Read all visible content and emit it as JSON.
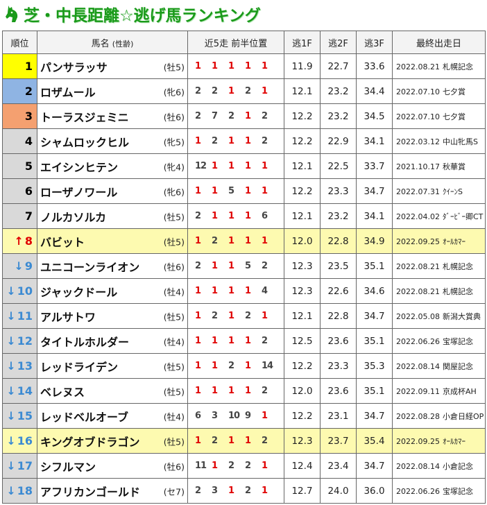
{
  "title": "芝・中長距離☆逃げ馬ランキング",
  "headers": {
    "rank": "順位",
    "name": "馬名",
    "sexage": "(性齢)",
    "positions": "近5走 前半位置",
    "f1": "逃1F",
    "f2": "逃2F",
    "f3": "逃3F",
    "last": "最終出走日"
  },
  "colors": {
    "gold": "#ffff00",
    "silver": "#8fb4e3",
    "bronze": "#f4a070",
    "highlight": "#fdfab0",
    "first_position": "#e00000"
  },
  "rows": [
    {
      "rank": "1",
      "arrow": "",
      "name": "パンサラッサ",
      "sexage": "(牡5)",
      "pos": [
        "1",
        "1",
        "1",
        "1",
        "1"
      ],
      "f1": "11.9",
      "f2": "22.7",
      "f3": "33.6",
      "date": "2022.08.21",
      "race": "札幌記念",
      "hl": false
    },
    {
      "rank": "2",
      "arrow": "",
      "name": "ロザムール",
      "sexage": "(牝6)",
      "pos": [
        "2",
        "2",
        "1",
        "2",
        "1"
      ],
      "f1": "12.1",
      "f2": "23.2",
      "f3": "34.4",
      "date": "2022.07.10",
      "race": "七夕賞",
      "hl": false
    },
    {
      "rank": "3",
      "arrow": "",
      "name": "トーラスジェミニ",
      "sexage": "(牡6)",
      "pos": [
        "2",
        "7",
        "2",
        "1",
        "2"
      ],
      "f1": "12.2",
      "f2": "23.2",
      "f3": "34.5",
      "date": "2022.07.10",
      "race": "七夕賞",
      "hl": false
    },
    {
      "rank": "4",
      "arrow": "",
      "name": "シャムロックヒル",
      "sexage": "(牝5)",
      "pos": [
        "1",
        "2",
        "1",
        "1",
        "2"
      ],
      "f1": "12.2",
      "f2": "22.9",
      "f3": "34.1",
      "date": "2022.03.12",
      "race": "中山牝馬S",
      "hl": false
    },
    {
      "rank": "5",
      "arrow": "",
      "name": "エイシンヒテン",
      "sexage": "(牝4)",
      "pos": [
        "12",
        "1",
        "1",
        "1",
        "1"
      ],
      "f1": "12.1",
      "f2": "22.5",
      "f3": "33.7",
      "date": "2021.10.17",
      "race": "秋華賞",
      "hl": false
    },
    {
      "rank": "6",
      "arrow": "",
      "name": "ローザノワール",
      "sexage": "(牝6)",
      "pos": [
        "1",
        "1",
        "5",
        "1",
        "1"
      ],
      "f1": "12.2",
      "f2": "23.3",
      "f3": "34.7",
      "date": "2022.07.31",
      "race": "ｸｲｰﾝS",
      "hl": false
    },
    {
      "rank": "7",
      "arrow": "",
      "name": "ノルカソルカ",
      "sexage": "(牡5)",
      "pos": [
        "2",
        "1",
        "1",
        "1",
        "6"
      ],
      "f1": "12.1",
      "f2": "23.2",
      "f3": "34.1",
      "date": "2022.04.02",
      "race": "ﾀﾞｰﾋﾞｰ卿CT",
      "hl": false
    },
    {
      "rank": "8",
      "arrow": "↑",
      "name": "バビット",
      "sexage": "(牡5)",
      "pos": [
        "1",
        "2",
        "1",
        "1",
        "1"
      ],
      "f1": "12.0",
      "f2": "22.8",
      "f3": "34.9",
      "date": "2022.09.25",
      "race": "ｵｰﾙｶﾏｰ",
      "hl": true
    },
    {
      "rank": "9",
      "arrow": "↓",
      "name": "ユニコーンライオン",
      "sexage": "(牡6)",
      "pos": [
        "2",
        "1",
        "1",
        "5",
        "2"
      ],
      "f1": "12.3",
      "f2": "23.5",
      "f3": "35.1",
      "date": "2022.08.21",
      "race": "札幌記念",
      "hl": false
    },
    {
      "rank": "10",
      "arrow": "↓",
      "name": "ジャックドール",
      "sexage": "(牡4)",
      "pos": [
        "1",
        "1",
        "1",
        "1",
        "4"
      ],
      "f1": "12.3",
      "f2": "22.6",
      "f3": "34.6",
      "date": "2022.08.21",
      "race": "札幌記念",
      "hl": false
    },
    {
      "rank": "11",
      "arrow": "↓",
      "name": "アルサトワ",
      "sexage": "(牡5)",
      "pos": [
        "1",
        "2",
        "1",
        "2",
        "1"
      ],
      "f1": "12.1",
      "f2": "22.8",
      "f3": "34.7",
      "date": "2022.05.08",
      "race": "新潟大賞典",
      "hl": false
    },
    {
      "rank": "12",
      "arrow": "↓",
      "name": "タイトルホルダー",
      "sexage": "(牡4)",
      "pos": [
        "1",
        "1",
        "1",
        "1",
        "2"
      ],
      "f1": "12.5",
      "f2": "23.6",
      "f3": "35.1",
      "date": "2022.06.26",
      "race": "宝塚記念",
      "hl": false
    },
    {
      "rank": "13",
      "arrow": "↓",
      "name": "レッドライデン",
      "sexage": "(牡5)",
      "pos": [
        "1",
        "1",
        "2",
        "1",
        "14"
      ],
      "f1": "12.2",
      "f2": "23.3",
      "f3": "35.3",
      "date": "2022.08.14",
      "race": "関屋記念",
      "hl": false
    },
    {
      "rank": "14",
      "arrow": "↓",
      "name": "ベレヌス",
      "sexage": "(牡5)",
      "pos": [
        "1",
        "1",
        "1",
        "1",
        "2"
      ],
      "f1": "12.0",
      "f2": "23.6",
      "f3": "35.1",
      "date": "2022.09.11",
      "race": "京成杯AH",
      "hl": false
    },
    {
      "rank": "15",
      "arrow": "↓",
      "name": "レッドベルオーブ",
      "sexage": "(牡4)",
      "pos": [
        "6",
        "3",
        "10",
        "9",
        "1"
      ],
      "f1": "12.2",
      "f2": "23.1",
      "f3": "34.7",
      "date": "2022.08.28",
      "race": "小倉日経OP",
      "hl": false
    },
    {
      "rank": "16",
      "arrow": "↓",
      "name": "キングオブドラゴン",
      "sexage": "(牡5)",
      "pos": [
        "1",
        "2",
        "1",
        "1",
        "2"
      ],
      "f1": "12.3",
      "f2": "23.7",
      "f3": "35.4",
      "date": "2022.09.25",
      "race": "ｵｰﾙｶﾏｰ",
      "hl": true
    },
    {
      "rank": "17",
      "arrow": "↓",
      "name": "シフルマン",
      "sexage": "(牡6)",
      "pos": [
        "11",
        "1",
        "2",
        "2",
        "1"
      ],
      "f1": "12.4",
      "f2": "23.4",
      "f3": "34.7",
      "date": "2022.08.14",
      "race": "小倉記念",
      "hl": false
    },
    {
      "rank": "18",
      "arrow": "↓",
      "name": "アフリカンゴールド",
      "sexage": "(セ7)",
      "pos": [
        "2",
        "3",
        "1",
        "2",
        "1"
      ],
      "f1": "12.7",
      "f2": "24.0",
      "f3": "36.0",
      "date": "2022.06.26",
      "race": "宝塚記念",
      "hl": false
    }
  ]
}
